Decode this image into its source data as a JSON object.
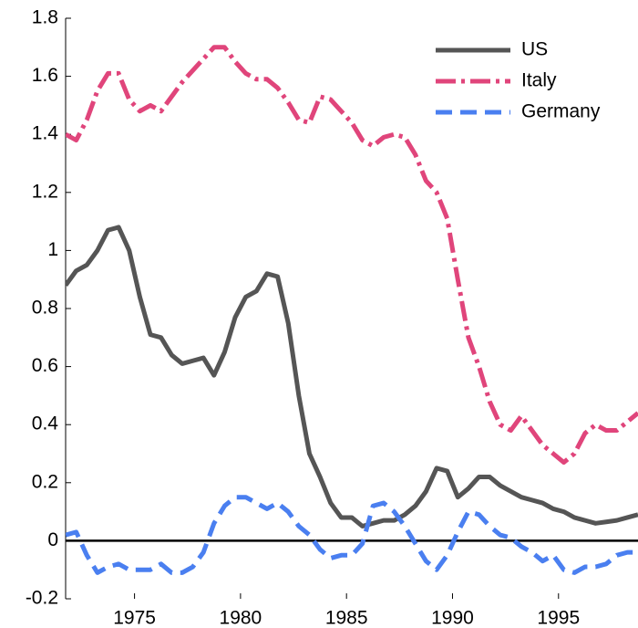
{
  "chart_data": {
    "type": "line",
    "x": [
      1971.75,
      1972.25,
      1972.75,
      1973.25,
      1973.75,
      1974.25,
      1974.75,
      1975.25,
      1975.75,
      1976.25,
      1976.75,
      1977.25,
      1977.75,
      1978.25,
      1978.75,
      1979.25,
      1979.75,
      1980.25,
      1980.75,
      1981.25,
      1981.75,
      1982.25,
      1982.75,
      1983.25,
      1983.75,
      1984.25,
      1984.75,
      1985.25,
      1985.75,
      1986.25,
      1986.75,
      1987.25,
      1987.75,
      1988.25,
      1988.75,
      1989.25,
      1989.75,
      1990.25,
      1990.75,
      1991.25,
      1991.75,
      1992.25,
      1992.75,
      1993.25,
      1993.75,
      1994.25,
      1994.75,
      1995.25,
      1995.75,
      1996.25,
      1996.75,
      1997.25,
      1997.75,
      1998.25,
      1998.75
    ],
    "series": [
      {
        "name": "US",
        "color": "#555555",
        "style": "solid",
        "values": [
          0.88,
          0.93,
          0.95,
          1.0,
          1.07,
          1.08,
          1.0,
          0.84,
          0.71,
          0.7,
          0.64,
          0.61,
          0.62,
          0.63,
          0.57,
          0.65,
          0.77,
          0.84,
          0.86,
          0.92,
          0.91,
          0.75,
          0.5,
          0.3,
          0.22,
          0.13,
          0.08,
          0.08,
          0.05,
          0.06,
          0.07,
          0.07,
          0.09,
          0.12,
          0.17,
          0.25,
          0.24,
          0.15,
          0.18,
          0.22,
          0.22,
          0.19,
          0.17,
          0.15,
          0.14,
          0.13,
          0.11,
          0.1,
          0.08,
          0.07,
          0.06,
          0.065,
          0.07,
          0.08,
          0.09
        ]
      },
      {
        "name": "Italy",
        "color": "#e0457b",
        "style": "dashdot",
        "values": [
          1.4,
          1.38,
          1.45,
          1.55,
          1.61,
          1.61,
          1.52,
          1.48,
          1.5,
          1.48,
          1.53,
          1.58,
          1.62,
          1.66,
          1.7,
          1.7,
          1.65,
          1.61,
          1.59,
          1.59,
          1.56,
          1.51,
          1.45,
          1.44,
          1.53,
          1.52,
          1.48,
          1.44,
          1.38,
          1.36,
          1.39,
          1.4,
          1.39,
          1.33,
          1.24,
          1.2,
          1.11,
          0.9,
          0.7,
          0.6,
          0.48,
          0.4,
          0.38,
          0.43,
          0.38,
          0.33,
          0.3,
          0.27,
          0.3,
          0.37,
          0.4,
          0.38,
          0.38,
          0.41,
          0.44
        ]
      },
      {
        "name": "Germany",
        "color": "#4a7ff0",
        "style": "dashed",
        "values": [
          0.02,
          0.03,
          -0.05,
          -0.11,
          -0.09,
          -0.08,
          -0.1,
          -0.1,
          -0.1,
          -0.08,
          -0.11,
          -0.11,
          -0.09,
          -0.04,
          0.06,
          0.12,
          0.15,
          0.15,
          0.13,
          0.11,
          0.13,
          0.1,
          0.05,
          0.02,
          -0.03,
          -0.06,
          -0.05,
          -0.05,
          -0.01,
          0.12,
          0.13,
          0.1,
          0.05,
          -0.01,
          -0.07,
          -0.1,
          -0.05,
          0.03,
          0.1,
          0.09,
          0.05,
          0.02,
          0.01,
          -0.02,
          -0.04,
          -0.07,
          -0.05,
          -0.1,
          -0.11,
          -0.09,
          -0.09,
          -0.08,
          -0.05,
          -0.04,
          -0.04
        ]
      }
    ],
    "reference_line": 0,
    "xlim": [
      1971.75,
      1998.75
    ],
    "xticks": [
      1975,
      1980,
      1985,
      1990,
      1995
    ],
    "ylim": [
      -0.2,
      1.8
    ],
    "yticks": [
      -0.2,
      0,
      0.2,
      0.4,
      0.6,
      0.8,
      1,
      1.2,
      1.4,
      1.6,
      1.8
    ],
    "legend": "upper right",
    "grid": false
  }
}
